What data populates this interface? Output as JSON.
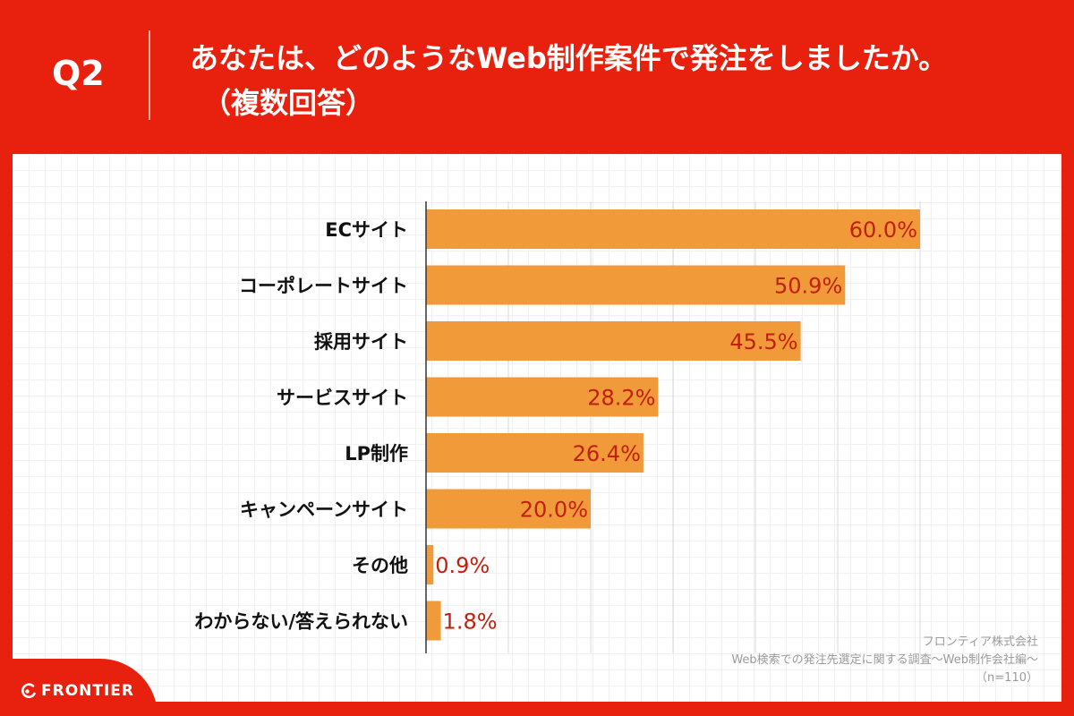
{
  "header": {
    "question_label": "Q2",
    "title_line1": "あなたは、どのようなWeb制作案件で発注をしましたか。",
    "title_line2": "（複数回答）"
  },
  "colors": {
    "background": "#e8210f",
    "bar": "#f09a3a",
    "value_label": "#c0200e",
    "category_label": "#111111",
    "gridline": "#d9d9d9"
  },
  "chart_data": {
    "type": "bar",
    "orientation": "horizontal",
    "categories": [
      "ECサイト",
      "コーポレートサイト",
      "採用サイト",
      "サービスサイト",
      "LP制作",
      "キャンペーンサイト",
      "その他",
      "わからない/答えられない"
    ],
    "values": [
      60.0,
      50.9,
      45.5,
      28.2,
      26.4,
      20.0,
      0.9,
      1.8
    ],
    "value_labels": [
      "60.0%",
      "50.9%",
      "45.5%",
      "28.2%",
      "26.4%",
      "20.0%",
      "0.9%",
      "1.8%"
    ],
    "xlim": [
      0,
      60
    ],
    "grid": true,
    "legend": false
  },
  "source": {
    "company": "フロンティア株式会社",
    "survey": "Web検索での発注先選定に関する調査〜Web制作会社編〜",
    "sample": "（n=110）"
  },
  "brand": {
    "logo_icon": "frontier-logo-icon",
    "name": "FRONTIER"
  }
}
